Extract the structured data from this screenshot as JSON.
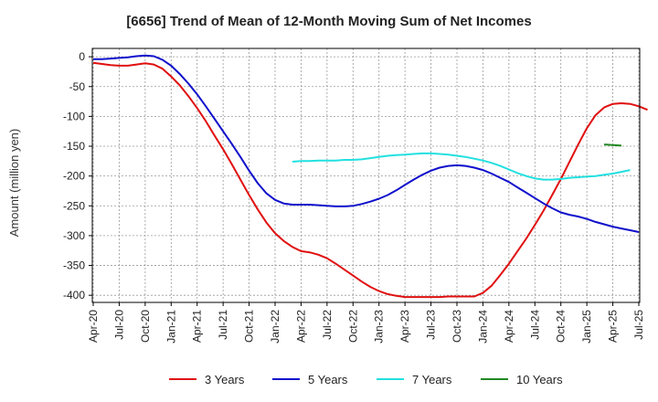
{
  "chart_data": {
    "type": "line",
    "title": "[6656]  Trend of Mean of 12-Month Moving Sum of Net Incomes",
    "ylabel": "Amount (million yen)",
    "xlabel": "",
    "ylim": [
      -412,
      14
    ],
    "yticks": [
      0,
      -50,
      -100,
      -150,
      -200,
      -250,
      -300,
      -350,
      -400
    ],
    "xticks": [
      "Apr-20",
      "Jul-20",
      "Oct-20",
      "Jan-21",
      "Apr-21",
      "Jul-21",
      "Oct-21",
      "Jan-22",
      "Apr-22",
      "Jul-22",
      "Oct-22",
      "Jan-23",
      "Apr-23",
      "Jul-23",
      "Oct-23",
      "Jan-24",
      "Apr-24",
      "Jul-24",
      "Oct-24",
      "Jan-25",
      "Apr-25",
      "Jul-25"
    ],
    "grid": true,
    "legend_position": "bottom",
    "series": [
      {
        "name": "3 Years",
        "color": "#e01010",
        "start": "Apr-20",
        "values": [
          -10,
          -12,
          -14,
          -15,
          -15,
          -13,
          -11,
          -13,
          -20,
          -33,
          -48,
          -66,
          -86,
          -108,
          -132,
          -155,
          -180,
          -206,
          -232,
          -256,
          -278,
          -296,
          -309,
          -319,
          -326,
          -328,
          -332,
          -338,
          -347,
          -357,
          -367,
          -377,
          -386,
          -393,
          -398,
          -401,
          -403,
          -403,
          -403,
          -403,
          -403,
          -402,
          -402,
          -402,
          -402,
          -396,
          -384,
          -366,
          -347,
          -326,
          -305,
          -282,
          -258,
          -232,
          -205,
          -176,
          -147,
          -120,
          -98,
          -85,
          -79,
          -78,
          -79,
          -83,
          -89
        ]
      },
      {
        "name": "5 Years",
        "color": "#1010cc",
        "start": "Apr-20",
        "values": [
          -4,
          -4,
          -3,
          -2,
          -1,
          1,
          2,
          1,
          -5,
          -15,
          -29,
          -45,
          -63,
          -83,
          -104,
          -125,
          -146,
          -168,
          -191,
          -212,
          -229,
          -240,
          -246,
          -248,
          -248,
          -248,
          -249,
          -250,
          -251,
          -251,
          -250,
          -247,
          -243,
          -238,
          -232,
          -224,
          -215,
          -206,
          -198,
          -191,
          -186,
          -183,
          -182,
          -183,
          -186,
          -190,
          -196,
          -203,
          -210,
          -219,
          -228,
          -237,
          -246,
          -254,
          -261,
          -265,
          -268,
          -272,
          -277,
          -281,
          -285,
          -288,
          -291,
          -294
        ]
      },
      {
        "name": "7 Years",
        "color": "#22e0e0",
        "start": "Mar-22",
        "values": [
          -176,
          -175,
          -175,
          -174,
          -174,
          -174,
          -173,
          -173,
          -172,
          -170,
          -168,
          -166,
          -165,
          -164,
          -163,
          -162,
          -162,
          -163,
          -164,
          -166,
          -168,
          -171,
          -174,
          -178,
          -183,
          -189,
          -195,
          -200,
          -204,
          -206,
          -206,
          -205,
          -203,
          -202,
          -201,
          -200,
          -198,
          -196,
          -193,
          -190
        ]
      },
      {
        "name": "10 Years",
        "color": "#228822",
        "start": "Mar-25",
        "values": [
          -147,
          -148,
          -149
        ]
      }
    ]
  }
}
